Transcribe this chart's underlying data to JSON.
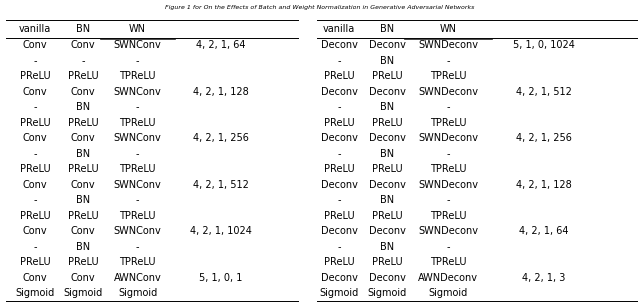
{
  "title": "Figure 1 for On the Effects of Batch and Weight Normalization in Generative Adversarial Networks",
  "left_headers": [
    "vanilla",
    "BN",
    "WN"
  ],
  "right_headers": [
    "vanilla",
    "BN",
    "WN"
  ],
  "left_rows": [
    [
      "Conv",
      "Conv",
      "SWNConv",
      "4, 2, 1, 64"
    ],
    [
      "-",
      "-",
      "-",
      ""
    ],
    [
      "PReLU",
      "PReLU",
      "TPReLU",
      ""
    ],
    [
      "Conv",
      "Conv",
      "SWNConv",
      "4, 2, 1, 128"
    ],
    [
      "-",
      "BN",
      "-",
      ""
    ],
    [
      "PReLU",
      "PReLU",
      "TPReLU",
      ""
    ],
    [
      "Conv",
      "Conv",
      "SWNConv",
      "4, 2, 1, 256"
    ],
    [
      "-",
      "BN",
      "-",
      ""
    ],
    [
      "PReLU",
      "PReLU",
      "TPReLU",
      ""
    ],
    [
      "Conv",
      "Conv",
      "SWNConv",
      "4, 2, 1, 512"
    ],
    [
      "-",
      "BN",
      "-",
      ""
    ],
    [
      "PReLU",
      "PReLU",
      "TPReLU",
      ""
    ],
    [
      "Conv",
      "Conv",
      "SWNConv",
      "4, 2, 1, 1024"
    ],
    [
      "-",
      "BN",
      "-",
      ""
    ],
    [
      "PReLU",
      "PReLU",
      "TPReLU",
      ""
    ],
    [
      "Conv",
      "Conv",
      "AWNConv",
      "5, 1, 0, 1"
    ],
    [
      "Sigmoid",
      "Sigmoid",
      "Sigmoid",
      ""
    ]
  ],
  "right_rows": [
    [
      "Deconv",
      "Deconv",
      "SWNDeconv",
      "5, 1, 0, 1024"
    ],
    [
      "-",
      "BN",
      "-",
      ""
    ],
    [
      "PReLU",
      "PReLU",
      "TPReLU",
      ""
    ],
    [
      "Deconv",
      "Deconv",
      "SWNDeconv",
      "4, 2, 1, 512"
    ],
    [
      "-",
      "BN",
      "-",
      ""
    ],
    [
      "PReLU",
      "PReLU",
      "TPReLU",
      ""
    ],
    [
      "Deconv",
      "Deconv",
      "SWNDeconv",
      "4, 2, 1, 256"
    ],
    [
      "-",
      "BN",
      "-",
      ""
    ],
    [
      "PReLU",
      "PReLU",
      "TPReLU",
      ""
    ],
    [
      "Deconv",
      "Deconv",
      "SWNDeconv",
      "4, 2, 1, 128"
    ],
    [
      "-",
      "BN",
      "-",
      ""
    ],
    [
      "PReLU",
      "PReLU",
      "TPReLU",
      ""
    ],
    [
      "Deconv",
      "Deconv",
      "SWNDeconv",
      "4, 2, 1, 64"
    ],
    [
      "-",
      "BN",
      "-",
      ""
    ],
    [
      "PReLU",
      "PReLU",
      "TPReLU",
      ""
    ],
    [
      "Deconv",
      "Deconv",
      "AWNDeconv",
      "4, 2, 1, 3"
    ],
    [
      "Sigmoid",
      "Sigmoid",
      "Sigmoid",
      ""
    ]
  ],
  "figsize": [
    6.4,
    3.08
  ],
  "dpi": 100,
  "font_size": 7.0
}
